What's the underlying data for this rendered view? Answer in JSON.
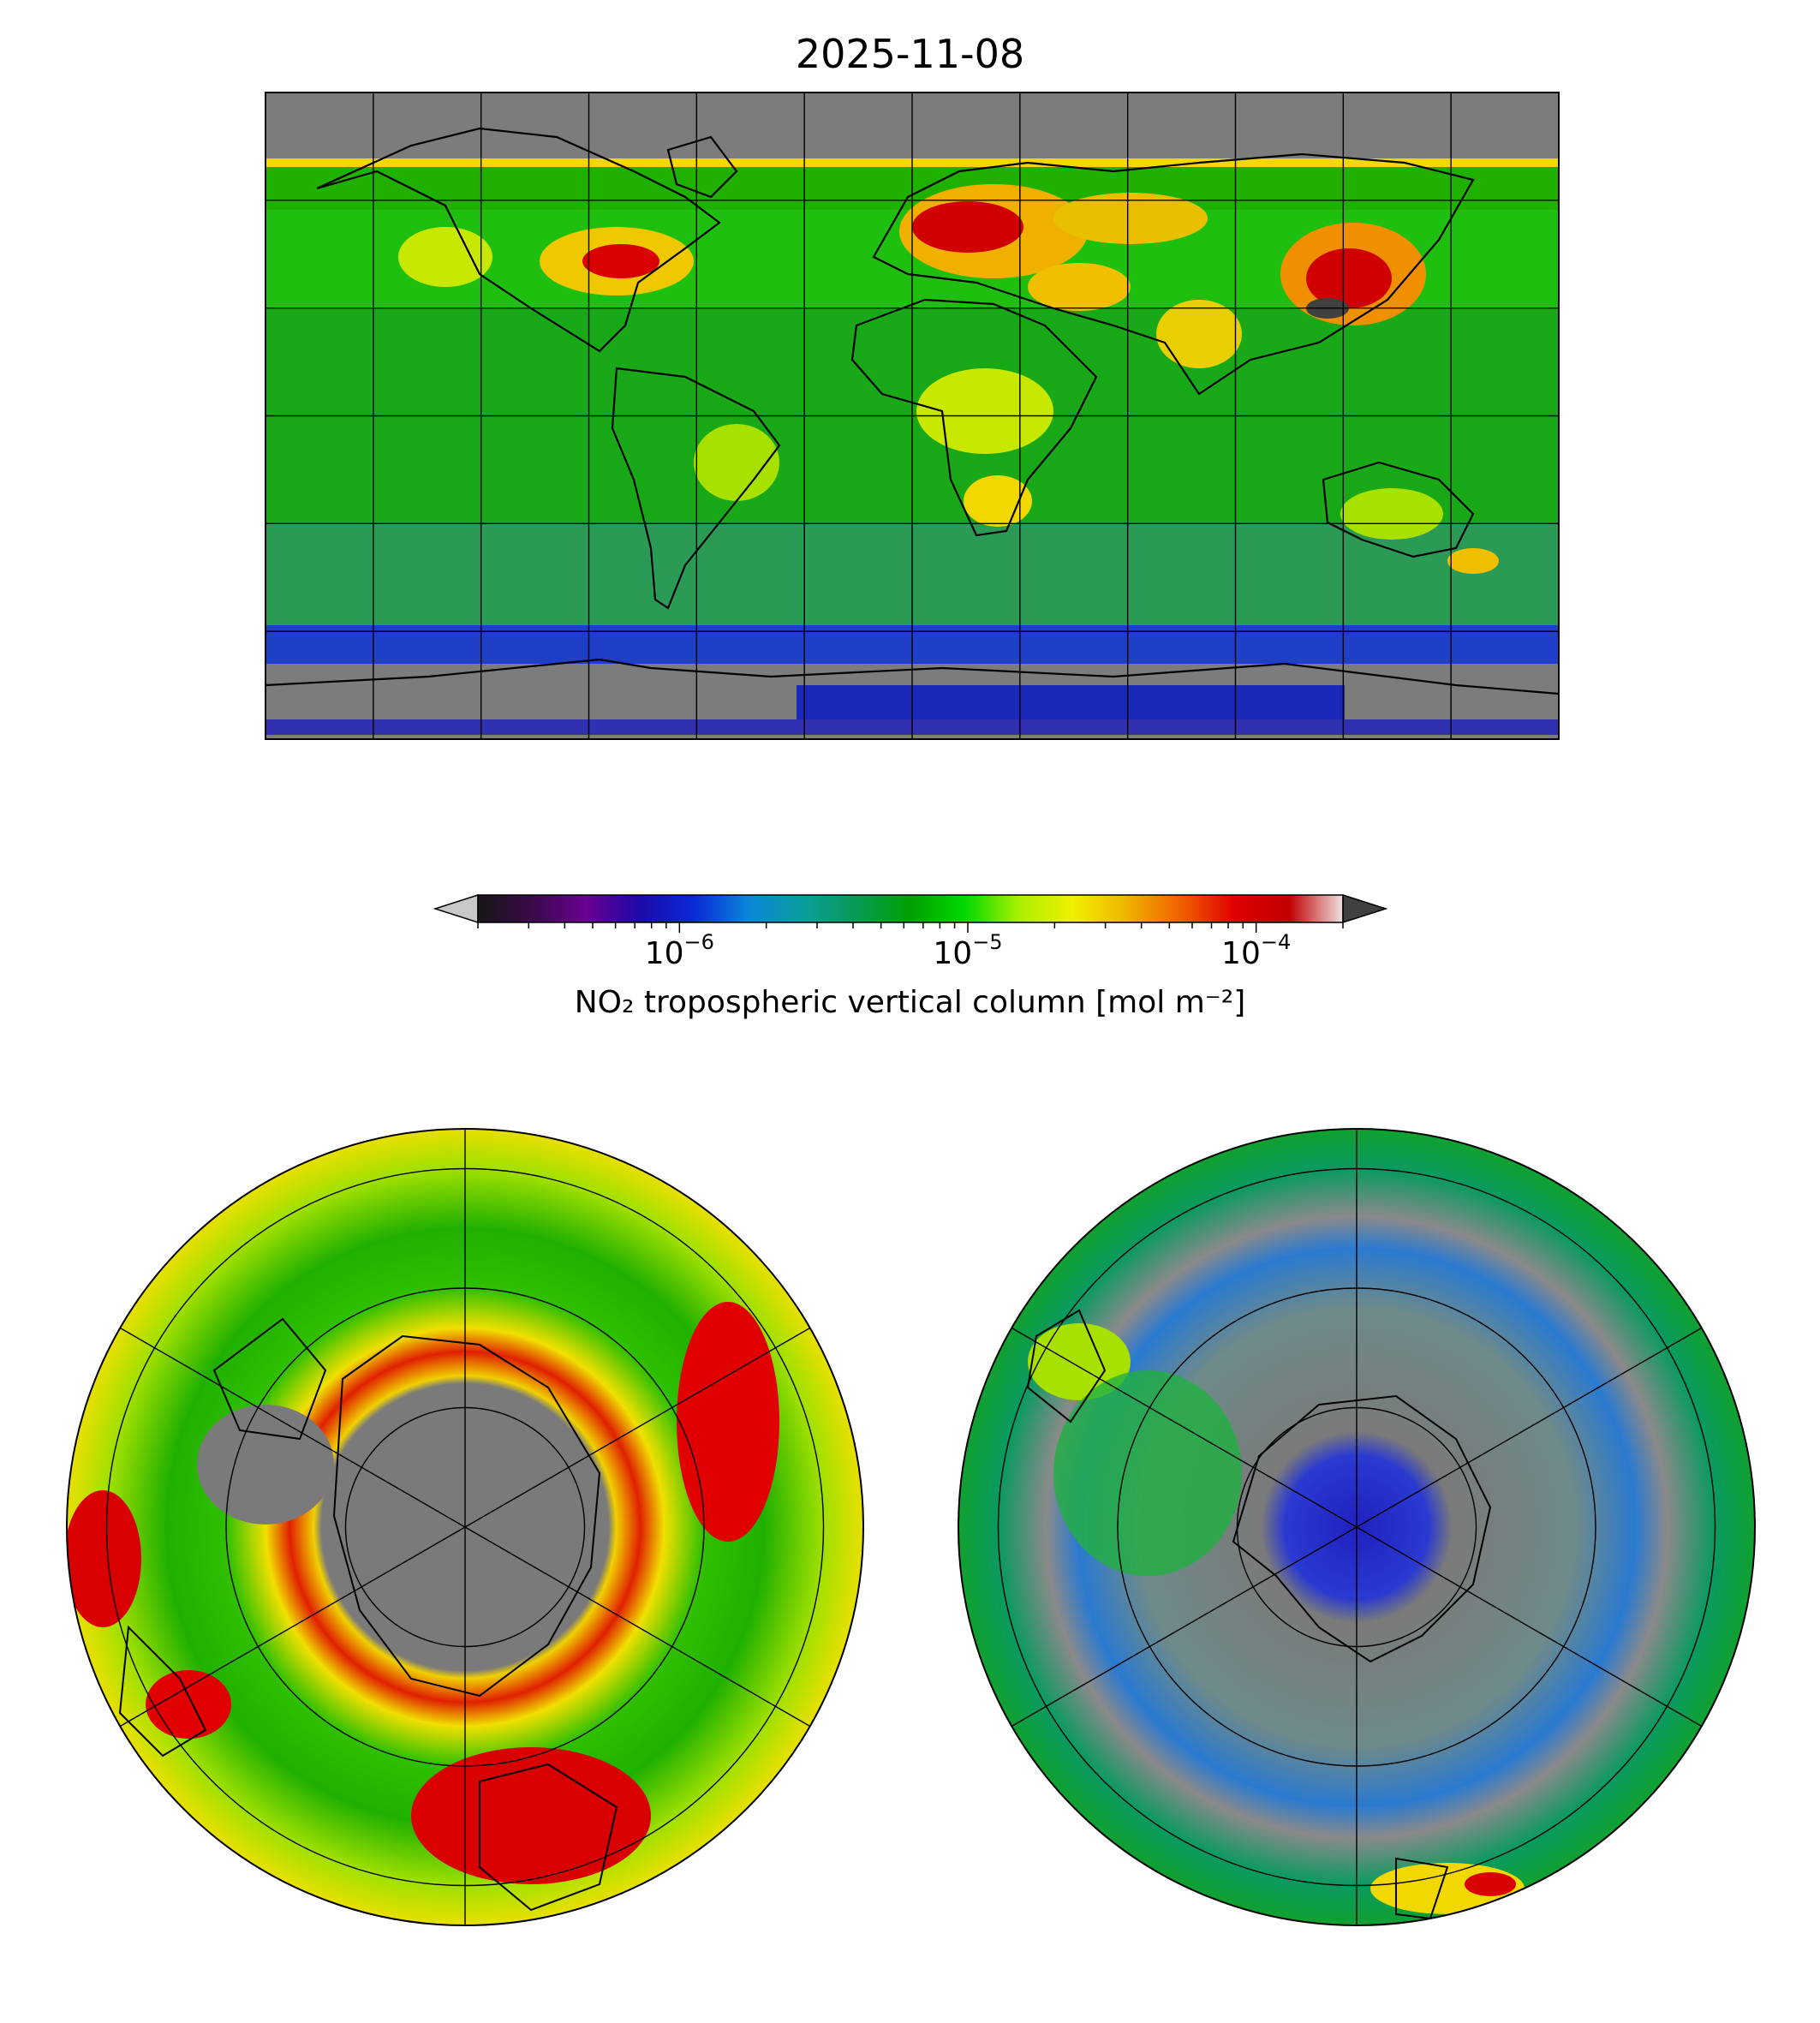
{
  "chart_data": {
    "type": "heatmap",
    "title": "2025-11-08",
    "colorbar": {
      "label": "NO₂ tropospheric vertical column [mol m⁻²]",
      "scale": "log",
      "range": [
        2e-07,
        0.0002
      ],
      "extend": "both",
      "ticks": [
        {
          "value": 1e-06,
          "base": "10",
          "exp": "−6"
        },
        {
          "value": 1e-05,
          "base": "10",
          "exp": "−5"
        },
        {
          "value": 0.0001,
          "base": "10",
          "exp": "−4"
        }
      ],
      "colors": [
        "#161616",
        "#3a0a4a",
        "#6a0090",
        "#1c0aa8",
        "#0a2ad8",
        "#0a86d8",
        "#0a9e9e",
        "#089a55",
        "#00a000",
        "#00d800",
        "#a8f000",
        "#f0f000",
        "#f0b400",
        "#f06000",
        "#e00000",
        "#c00000",
        "#f0e0e0"
      ],
      "under_color": "#c8c8c8",
      "over_color": "#404040"
    },
    "panels": [
      {
        "name": "global",
        "projection": "plate-carree",
        "grid_lon_step_deg": 30,
        "grid_lat_step_deg": 30,
        "hotspots": [
          "Europe",
          "Eastern China",
          "India",
          "Eastern North America",
          "Middle East"
        ]
      },
      {
        "name": "north-polar",
        "projection": "north-polar-stereographic",
        "hotspots": [
          "Europe",
          "East Asia",
          "North America"
        ]
      },
      {
        "name": "south-polar",
        "projection": "south-polar-stereographic",
        "hotspots": [
          "Southern Africa",
          "South America"
        ]
      }
    ]
  }
}
